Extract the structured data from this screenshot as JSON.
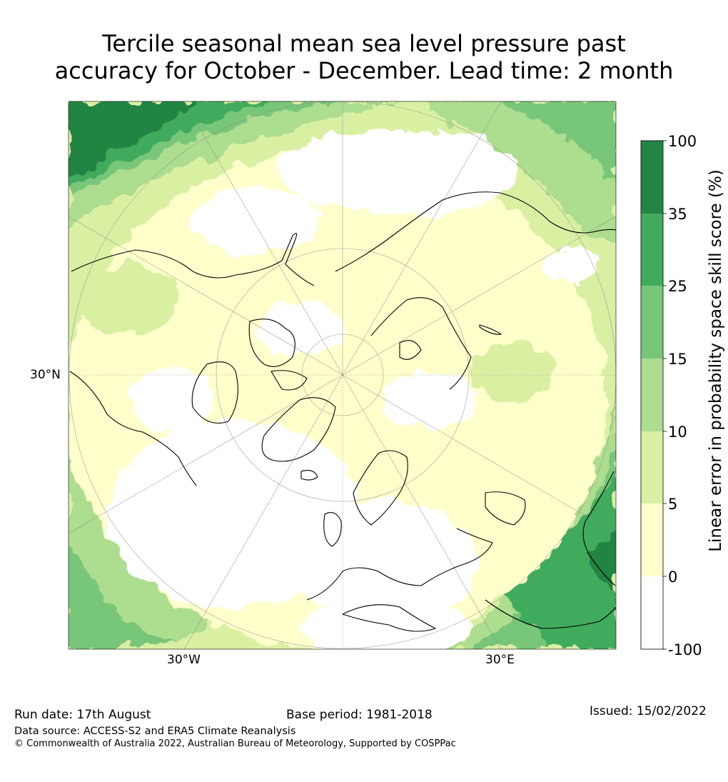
{
  "title": {
    "line1": "Tercile seasonal mean sea level pressure past",
    "line2": "accuracy for October - December. Lead time: 2 month"
  },
  "map": {
    "projection": "north-polar-stereographic",
    "lat_label": "30°N",
    "lon_labels": {
      "west": "30°W",
      "east": "30°E"
    },
    "colors": {
      "below_0": "#ffffff",
      "0_5": "#ffffcc",
      "5_10": "#d9f0a3",
      "10_15": "#addd8e",
      "15_25": "#78c679",
      "25_35": "#41ab5d",
      "35_100": "#238443"
    }
  },
  "colorbar": {
    "label": "Linear error in probability space skill score (%)",
    "ticks": [
      "100",
      "35",
      "25",
      "15",
      "10",
      "5",
      "0",
      "-100"
    ],
    "levels": [
      {
        "range": "35-100",
        "color": "#238443"
      },
      {
        "range": "25-35",
        "color": "#41ab5d"
      },
      {
        "range": "15-25",
        "color": "#78c679"
      },
      {
        "range": "10-15",
        "color": "#addd8e"
      },
      {
        "range": "5-10",
        "color": "#d9f0a3"
      },
      {
        "range": "0-5",
        "color": "#ffffcc"
      },
      {
        "range": "-100-0",
        "color": "#ffffff"
      }
    ]
  },
  "footer": {
    "run_date": "Run date: 17th August",
    "base_period": "Base period: 1981-2018",
    "issued": "Issued: 15/02/2022",
    "data_source": "Data source: ACCESS-S2 and ERA5 Climate Reanalysis",
    "copyright": "© Commonwealth of Australia 2022, Australian Bureau of Meteorology, Supported by COSPPac"
  }
}
